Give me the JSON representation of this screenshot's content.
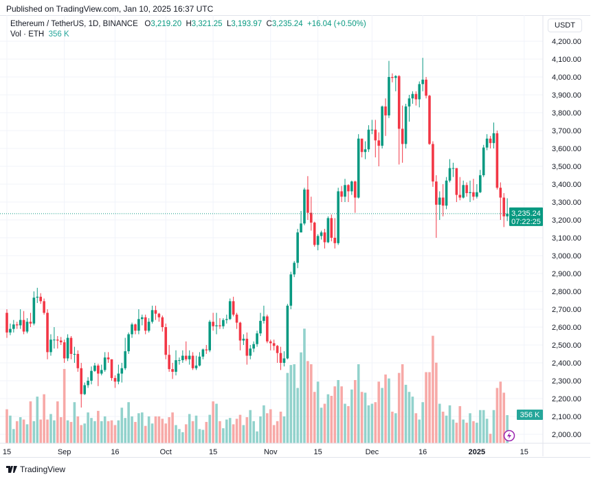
{
  "header": {
    "published": "Published on TradingView.com, Jan 10, 2025 16:37 UTC",
    "symbol": "Ethereum / TetherUS, 1D, BINANCE",
    "o_label": "O",
    "o": "3,219.20",
    "h_label": "H",
    "h": "3,321.25",
    "l_label": "L",
    "l": "3,193.97",
    "c_label": "C",
    "c": "3,235.24",
    "change": "+16.04 (+0.50%)",
    "vol_label": "Vol · ETH",
    "vol_value": "356 K",
    "currency": "USDT"
  },
  "footer": {
    "brand": "TradingView"
  },
  "colors": {
    "up": "#089981",
    "down": "#f23645",
    "vol_up": "#92d2cc",
    "vol_down": "#f7a9a7",
    "grid": "#f0f3fa",
    "text": "#131722"
  },
  "chart_data": {
    "type": "candlestick",
    "title": "",
    "start_date": "2024-08-15",
    "end_date": "2025-01-10",
    "first_open": 2680,
    "opens_note_free": true,
    "ylim": [
      2000,
      4200
    ],
    "grid": true,
    "y_ticks": [
      "4,200.00",
      "4,100.00",
      "4,000.00",
      "3,900.00",
      "3,800.00",
      "3,700.00",
      "3,600.00",
      "3,500.00",
      "3,400.00",
      "3,300.00",
      "3,200.00",
      "3,100.00",
      "3,000.00",
      "2,900.00",
      "2,800.00",
      "2,700.00",
      "2,600.00",
      "2,500.00",
      "2,400.00",
      "2,300.00",
      "2,200.00",
      "2,100.00",
      "2,000.00"
    ],
    "x_ticks": [
      {
        "label": "15",
        "date": "2024-08-15"
      },
      {
        "label": "Sep",
        "date": "2024-09-01"
      },
      {
        "label": "16",
        "date": "2024-09-16"
      },
      {
        "label": "Oct",
        "date": "2024-10-01"
      },
      {
        "label": "15",
        "date": "2024-10-15"
      },
      {
        "label": "Nov",
        "date": "2024-11-01"
      },
      {
        "label": "15",
        "date": "2024-11-15"
      },
      {
        "label": "Dec",
        "date": "2024-12-01"
      },
      {
        "label": "16",
        "date": "2024-12-16"
      },
      {
        "label": "2025",
        "date": "2025-01-01",
        "bold": true
      },
      {
        "label": "15",
        "date": "2025-01-15"
      }
    ],
    "last_price_label": "3,235.24",
    "countdown": "07:22:25",
    "last_volume_label": "356 K",
    "close": [
      2570,
      2590,
      2615,
      2610,
      2640,
      2575,
      2630,
      2620,
      2765,
      2770,
      2745,
      2680,
      2460,
      2530,
      2530,
      2525,
      2515,
      2425,
      2540,
      2450,
      2450,
      2370,
      2225,
      2275,
      2300,
      2355,
      2385,
      2340,
      2360,
      2430,
      2420,
      2315,
      2295,
      2340,
      2370,
      2465,
      2560,
      2615,
      2580,
      2645,
      2655,
      2580,
      2630,
      2695,
      2675,
      2655,
      2600,
      2445,
      2365,
      2350,
      2415,
      2415,
      2440,
      2420,
      2440,
      2370,
      2385,
      2435,
      2475,
      2470,
      2630,
      2605,
      2610,
      2605,
      2640,
      2645,
      2745,
      2670,
      2625,
      2525,
      2535,
      2440,
      2480,
      2505,
      2565,
      2635,
      2660,
      2520,
      2510,
      2495,
      2455,
      2400,
      2425,
      2720,
      2895,
      2960,
      3130,
      3180,
      3370,
      3240,
      3185,
      3060,
      3110,
      3130,
      3075,
      3210,
      3100,
      3070,
      3360,
      3330,
      3395,
      3360,
      3415,
      3325,
      3655,
      3580,
      3595,
      3705,
      3705,
      3645,
      3615,
      3835,
      3785,
      4000,
      3995,
      4005,
      3710,
      3625,
      3835,
      3880,
      3905,
      3875,
      3960,
      3985,
      3895,
      3625,
      3415,
      3285,
      3325,
      3280,
      3420,
      3490,
      3490,
      3340,
      3325,
      3395,
      3350,
      3355,
      3330,
      3355,
      3450,
      3605,
      3655,
      3630,
      3685,
      3380,
      3325,
      3220,
      3235.24
    ],
    "high": [
      2700,
      2620,
      2640,
      2630,
      2700,
      2690,
      2650,
      2680,
      2800,
      2820,
      2790,
      2760,
      2700,
      2560,
      2600,
      2550,
      2545,
      2530,
      2560,
      2550,
      2490,
      2470,
      2400,
      2290,
      2320,
      2380,
      2400,
      2395,
      2390,
      2460,
      2460,
      2420,
      2330,
      2390,
      2400,
      2540,
      2570,
      2625,
      2620,
      2700,
      2670,
      2670,
      2650,
      2720,
      2720,
      2680,
      2665,
      2620,
      2500,
      2400,
      2470,
      2430,
      2470,
      2520,
      2470,
      2460,
      2440,
      2460,
      2480,
      2500,
      2640,
      2680,
      2680,
      2650,
      2650,
      2670,
      2760,
      2770,
      2680,
      2630,
      2560,
      2570,
      2500,
      2520,
      2580,
      2680,
      2720,
      2670,
      2530,
      2530,
      2500,
      2490,
      2465,
      2730,
      2910,
      2970,
      3150,
      3250,
      3380,
      3445,
      3330,
      3190,
      3120,
      3140,
      3150,
      3220,
      3230,
      3210,
      3380,
      3390,
      3430,
      3400,
      3420,
      3420,
      3680,
      3650,
      3640,
      3730,
      3760,
      3760,
      3690,
      3840,
      3880,
      4090,
      4020,
      4010,
      4010,
      3840,
      3850,
      3900,
      3920,
      3920,
      3975,
      4107,
      4000,
      3900,
      3640,
      3450,
      3360,
      3400,
      3440,
      3540,
      3520,
      3490,
      3440,
      3420,
      3410,
      3420,
      3430,
      3400,
      3480,
      3620,
      3680,
      3670,
      3745,
      3700,
      3410,
      3350,
      3321.25
    ],
    "low": [
      2540,
      2555,
      2570,
      2590,
      2590,
      2560,
      2565,
      2600,
      2610,
      2735,
      2730,
      2670,
      2420,
      2440,
      2480,
      2480,
      2500,
      2400,
      2410,
      2420,
      2400,
      2350,
      2150,
      2220,
      2260,
      2280,
      2350,
      2270,
      2330,
      2350,
      2400,
      2300,
      2260,
      2280,
      2290,
      2360,
      2450,
      2540,
      2560,
      2560,
      2610,
      2560,
      2570,
      2620,
      2640,
      2630,
      2575,
      2420,
      2350,
      2310,
      2330,
      2390,
      2400,
      2410,
      2390,
      2360,
      2360,
      2380,
      2420,
      2450,
      2460,
      2580,
      2560,
      2590,
      2590,
      2620,
      2640,
      2660,
      2590,
      2470,
      2500,
      2390,
      2420,
      2460,
      2490,
      2550,
      2620,
      2510,
      2470,
      2470,
      2400,
      2360,
      2380,
      2420,
      2700,
      2880,
      2930,
      3130,
      3170,
      3200,
      3140,
      3050,
      3030,
      3090,
      3040,
      3070,
      3080,
      3040,
      3060,
      3300,
      3300,
      3300,
      3340,
      3240,
      3320,
      3550,
      3540,
      3580,
      3680,
      3550,
      3500,
      3600,
      3670,
      3770,
      3970,
      3920,
      3510,
      3520,
      3600,
      3750,
      3850,
      3840,
      3830,
      3920,
      3880,
      3620,
      3385,
      3100,
      3200,
      3220,
      3260,
      3410,
      3440,
      3300,
      3310,
      3320,
      3330,
      3300,
      3310,
      3320,
      3350,
      3440,
      3590,
      3600,
      3600,
      3370,
      3200,
      3160,
      3193.97
    ],
    "volume_k": [
      430,
      350,
      180,
      280,
      330,
      300,
      240,
      530,
      280,
      590,
      300,
      620,
      300,
      370,
      290,
      530,
      330,
      940,
      290,
      270,
      520,
      340,
      230,
      250,
      390,
      320,
      280,
      410,
      280,
      340,
      280,
      290,
      230,
      290,
      450,
      320,
      520,
      340,
      270,
      380,
      390,
      220,
      340,
      250,
      340,
      340,
      310,
      250,
      330,
      390,
      230,
      180,
      140,
      240,
      370,
      280,
      350,
      180,
      170,
      270,
      360,
      530,
      500,
      280,
      190,
      300,
      320,
      240,
      310,
      360,
      230,
      330,
      420,
      280,
      150,
      340,
      480,
      380,
      430,
      230,
      280,
      400,
      340,
      890,
      990,
      1000,
      700,
      1150,
      1450,
      1040,
      1000,
      650,
      780,
      450,
      500,
      620,
      600,
      720,
      800,
      720,
      500,
      470,
      680,
      800,
      1000,
      650,
      640,
      480,
      500,
      520,
      780,
      700,
      870,
      820,
      400,
      380,
      890,
      1000,
      740,
      650,
      590,
      380,
      300,
      520,
      900,
      900,
      1360,
      1020,
      500,
      400,
      350,
      480,
      300,
      260,
      470,
      300,
      260,
      380,
      280,
      260,
      420,
      420,
      310,
      120,
      420,
      700,
      780,
      640,
      356
    ]
  }
}
